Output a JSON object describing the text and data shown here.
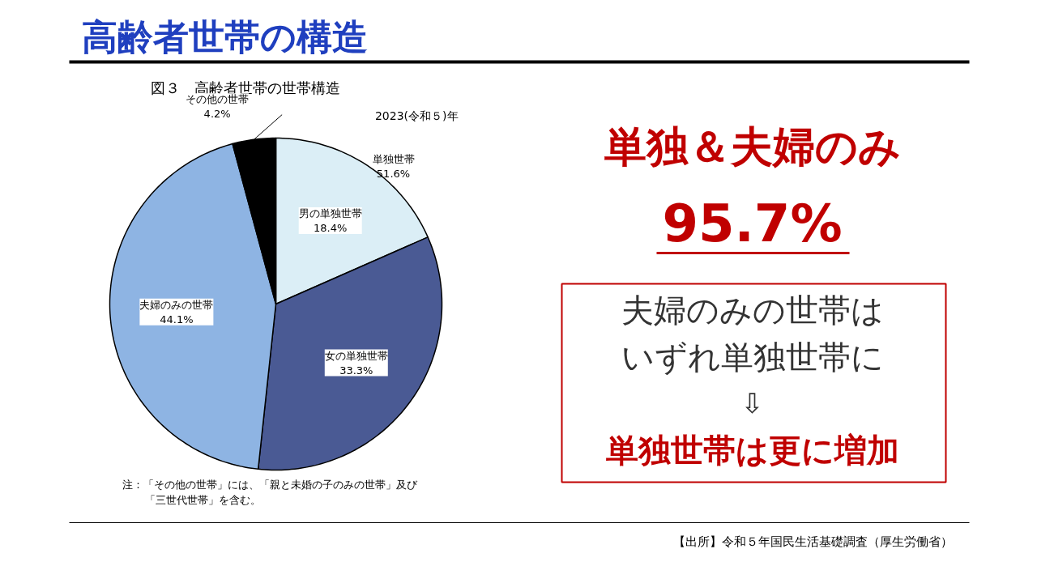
{
  "chart_data": {
    "type": "pie",
    "title": "高齢者世帯の構造",
    "subtitle": "図３　高齢者世帯の世帯構造",
    "categories": [
      "男の単独世帯",
      "女の単独世帯",
      "夫婦のみの世帯",
      "その他の世帯"
    ],
    "values": [
      18.4,
      33.3,
      44.1,
      4.2
    ],
    "value_labels": [
      "18.4%",
      "33.3%",
      "44.1%",
      "4.2%"
    ],
    "colors": [
      "#dbeef6",
      "#4a5a94",
      "#8eb4e3",
      "#000000"
    ],
    "annotations": [
      "2023(令和５)年",
      "単独世帯\n51.6%",
      "単独＆夫婦のみ",
      "95.7%",
      "夫婦のみの世帯は",
      "いずれ単独世帯に",
      "⇩",
      "単独世帯は更に増加",
      "注：「その他の世帯」には、「親と未婚の子のみの世帯」及び",
      "「三世代世帯」を含む。",
      "【出所】令和５年国民生活基礎調査（厚生労働省）"
    ]
  }
}
